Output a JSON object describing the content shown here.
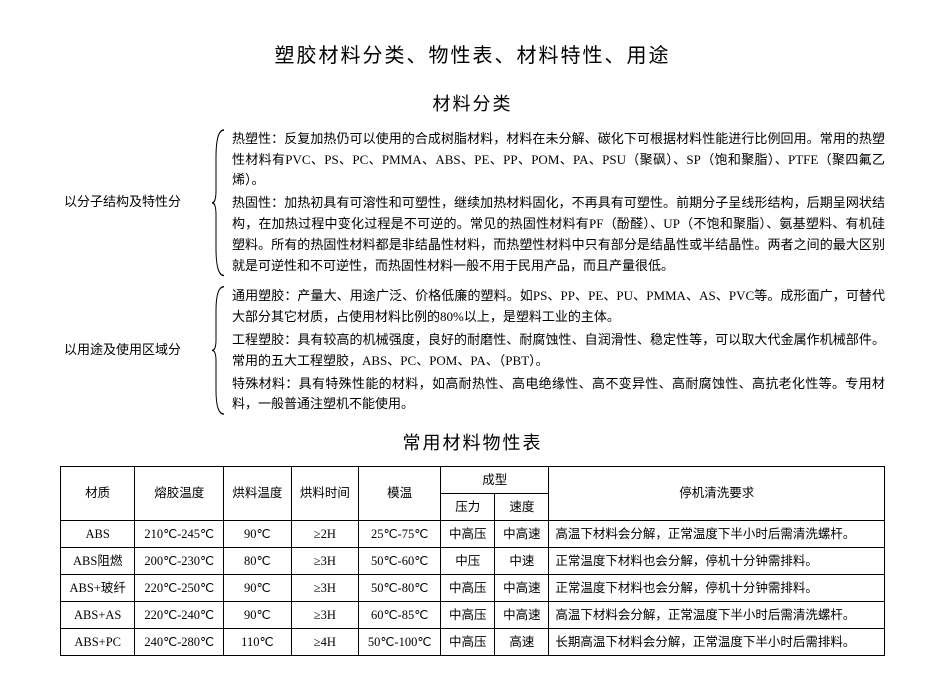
{
  "doc_title": "塑胶材料分类、物性表、材料特性、用途",
  "section_classification_title": "材料分类",
  "section_table_title": "常用材料物性表",
  "group1": {
    "label": "以分子结构及特性分",
    "items": [
      {
        "lead": "热塑性：",
        "text": "反复加热仍可以使用的合成树脂材料，材料在未分解、碳化下可根据材料性能进行比例回用。常用的热塑性材料有PVC、PS、PC、PMMA、ABS、PE、PP、POM、PA、PSU（聚砜）、SP（饱和聚脂）、PTFE（聚四氟乙烯）。"
      },
      {
        "lead": "热固性：",
        "text": "加热初具有可溶性和可塑性，继续加热材料固化，不再具有可塑性。前期分子呈线形结构，后期呈网状结构，在加热过程中变化过程是不可逆的。常见的热固性材料有PF（酚醛）、UP（不饱和聚脂）、氨基塑料、有机硅塑料。所有的热固性材料都是非结晶性材料，而热塑性材料中只有部分是结晶性或半结晶性。两者之间的最大区别就是可逆性和不可逆性，而热固性材料一般不用于民用产品，而且产量很低。"
      }
    ]
  },
  "group2": {
    "label": "以用途及使用区域分",
    "items": [
      {
        "lead": "通用塑胶：",
        "text": "产量大、用途广泛、价格低廉的塑料。如PS、PP、PE、PU、PMMA、AS、PVC等。成形面广，可替代大部分其它材质，占使用材料比例的80%以上，是塑料工业的主体。"
      },
      {
        "lead": "工程塑胶：",
        "text": "具有较高的机械强度，良好的耐磨性、耐腐蚀性、自润滑性、稳定性等，可以取大代金属作机械部件。常用的五大工程塑胶，ABS、PC、POM、PA、（PBT）。"
      },
      {
        "lead": "特殊材料：",
        "text": "具有特殊性能的材料，如高耐热性、高电绝缘性、高不变异性、高耐腐蚀性、高抗老化性等。专用材料，一般普通注塑机不能使用。"
      }
    ]
  },
  "table": {
    "columns": {
      "material": "材质",
      "melt": "熔胶温度",
      "dry_temp": "烘料温度",
      "dry_time": "烘料时间",
      "mold_temp": "模温",
      "molding": "成型",
      "pressure": "压力",
      "speed": "速度",
      "stop_clean": "停机清洗要求"
    },
    "rows": [
      {
        "material": "ABS",
        "melt": "210℃-245℃",
        "dry_temp": "90℃",
        "dry_time": "≥2H",
        "mold_temp": "25℃-75℃",
        "pressure": "中高压",
        "speed": "中高速",
        "req": "高温下材料会分解，正常温度下半小时后需清洗螺杆。"
      },
      {
        "material": "ABS阻燃",
        "melt": "200℃-230℃",
        "dry_temp": "80℃",
        "dry_time": "≥3H",
        "mold_temp": "50℃-60℃",
        "pressure": "中压",
        "speed": "中速",
        "req": "正常温度下材料也会分解，停机十分钟需排料。"
      },
      {
        "material": "ABS+玻纤",
        "melt": "220℃-250℃",
        "dry_temp": "90℃",
        "dry_time": "≥3H",
        "mold_temp": "50℃-80℃",
        "pressure": "中高压",
        "speed": "中高速",
        "req": "正常温度下材料也会分解，停机十分钟需排料。"
      },
      {
        "material": "ABS+AS",
        "melt": "220℃-240℃",
        "dry_temp": "90℃",
        "dry_time": "≥3H",
        "mold_temp": "60℃-85℃",
        "pressure": "中高压",
        "speed": "中高速",
        "req": "高温下材料会分解，正常温度下半小时后需清洗螺杆。"
      },
      {
        "material": "ABS+PC",
        "melt": "240℃-280℃",
        "dry_temp": "110℃",
        "dry_time": "≥4H",
        "mold_temp": "50℃-100℃",
        "pressure": "中高压",
        "speed": "高速",
        "req": "长期高温下材料会分解，正常温度下半小时后需排料。"
      }
    ]
  }
}
